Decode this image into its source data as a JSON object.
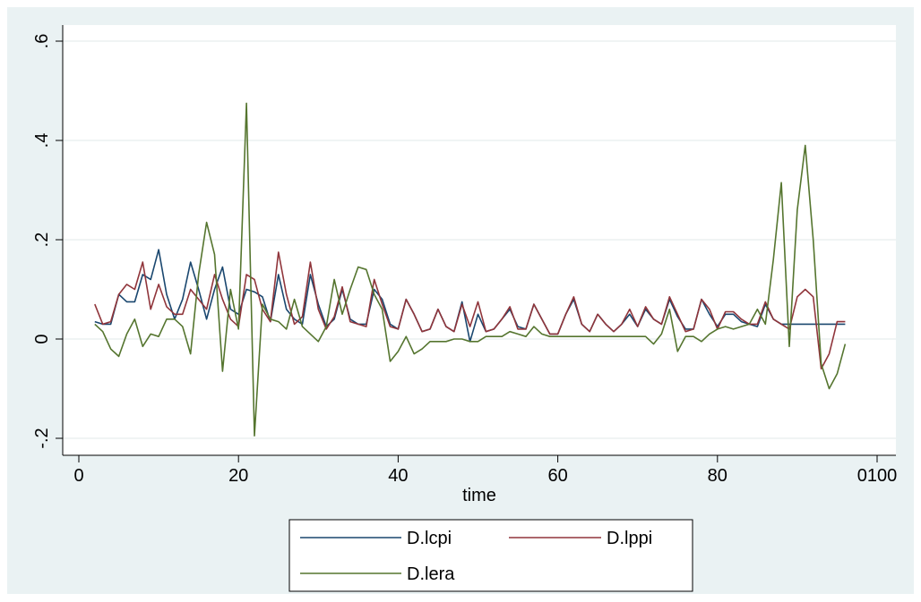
{
  "chart_data": {
    "type": "line",
    "xlabel": "time",
    "ylabel": "",
    "xlim": [
      0,
      100
    ],
    "ylim": [
      -0.2,
      0.6
    ],
    "x_ticks": [
      0,
      20,
      40,
      60,
      80,
      100
    ],
    "x_tick_labels": [
      "0",
      "20",
      "40",
      "60",
      "80",
      "0100"
    ],
    "y_ticks": [
      -0.2,
      0,
      0.2,
      0.4,
      0.6
    ],
    "y_tick_labels": [
      "-.2",
      "0",
      ".2",
      ".4",
      ".6"
    ],
    "grid": true,
    "legend_position": "bottom",
    "series": [
      {
        "name": "D.lcpi",
        "color": "#1a476f",
        "points": [
          [
            2,
            0.035
          ],
          [
            3,
            0.03
          ],
          [
            4,
            0.03
          ],
          [
            5,
            0.09
          ],
          [
            6,
            0.075
          ],
          [
            7,
            0.075
          ],
          [
            8,
            0.13
          ],
          [
            9,
            0.12
          ],
          [
            10,
            0.18
          ],
          [
            11,
            0.09
          ],
          [
            12,
            0.04
          ],
          [
            13,
            0.08
          ],
          [
            14,
            0.155
          ],
          [
            15,
            0.1
          ],
          [
            16,
            0.04
          ],
          [
            17,
            0.1
          ],
          [
            18,
            0.145
          ],
          [
            19,
            0.06
          ],
          [
            20,
            0.05
          ],
          [
            21,
            0.1
          ],
          [
            22,
            0.095
          ],
          [
            23,
            0.085
          ],
          [
            24,
            0.035
          ],
          [
            25,
            0.13
          ],
          [
            26,
            0.06
          ],
          [
            27,
            0.04
          ],
          [
            28,
            0.03
          ],
          [
            29,
            0.13
          ],
          [
            30,
            0.07
          ],
          [
            31,
            0.025
          ],
          [
            32,
            0.04
          ],
          [
            33,
            0.1
          ],
          [
            34,
            0.04
          ],
          [
            35,
            0.03
          ],
          [
            36,
            0.03
          ],
          [
            37,
            0.1
          ],
          [
            38,
            0.08
          ],
          [
            39,
            0.03
          ],
          [
            40,
            0.02
          ],
          [
            41,
            0.08
          ],
          [
            42,
            0.05
          ],
          [
            43,
            0.015
          ],
          [
            44,
            0.02
          ],
          [
            45,
            0.06
          ],
          [
            46,
            0.025
          ],
          [
            47,
            0.015
          ],
          [
            48,
            0.075
          ],
          [
            49,
            -0.005
          ],
          [
            50,
            0.05
          ],
          [
            51,
            0.015
          ],
          [
            52,
            0.02
          ],
          [
            53,
            0.04
          ],
          [
            54,
            0.06
          ],
          [
            55,
            0.025
          ],
          [
            56,
            0.02
          ],
          [
            57,
            0.07
          ],
          [
            58,
            0.04
          ],
          [
            59,
            0.01
          ],
          [
            60,
            0.01
          ],
          [
            61,
            0.05
          ],
          [
            62,
            0.08
          ],
          [
            63,
            0.03
          ],
          [
            64,
            0.015
          ],
          [
            65,
            0.05
          ],
          [
            66,
            0.03
          ],
          [
            67,
            0.015
          ],
          [
            68,
            0.03
          ],
          [
            69,
            0.05
          ],
          [
            70,
            0.025
          ],
          [
            71,
            0.06
          ],
          [
            72,
            0.04
          ],
          [
            73,
            0.03
          ],
          [
            74,
            0.08
          ],
          [
            75,
            0.045
          ],
          [
            76,
            0.02
          ],
          [
            77,
            0.02
          ],
          [
            78,
            0.08
          ],
          [
            79,
            0.05
          ],
          [
            80,
            0.025
          ],
          [
            81,
            0.05
          ],
          [
            82,
            0.05
          ],
          [
            83,
            0.035
          ],
          [
            84,
            0.03
          ],
          [
            85,
            0.025
          ],
          [
            86,
            0.07
          ],
          [
            87,
            0.04
          ],
          [
            88,
            0.03
          ],
          [
            89,
            0.03
          ],
          [
            90,
            0.03
          ],
          [
            91,
            0.03
          ],
          [
            92,
            0.03
          ],
          [
            93,
            0.03
          ],
          [
            94,
            0.03
          ],
          [
            95,
            0.03
          ],
          [
            96,
            0.03
          ]
        ]
      },
      {
        "name": "D.lppi",
        "color": "#90353b",
        "points": [
          [
            2,
            0.07
          ],
          [
            3,
            0.03
          ],
          [
            4,
            0.035
          ],
          [
            5,
            0.09
          ],
          [
            6,
            0.11
          ],
          [
            7,
            0.1
          ],
          [
            8,
            0.155
          ],
          [
            9,
            0.06
          ],
          [
            10,
            0.11
          ],
          [
            11,
            0.065
          ],
          [
            12,
            0.05
          ],
          [
            13,
            0.05
          ],
          [
            14,
            0.1
          ],
          [
            15,
            0.08
          ],
          [
            16,
            0.06
          ],
          [
            17,
            0.13
          ],
          [
            18,
            0.08
          ],
          [
            19,
            0.04
          ],
          [
            20,
            0.025
          ],
          [
            21,
            0.13
          ],
          [
            22,
            0.12
          ],
          [
            23,
            0.06
          ],
          [
            24,
            0.035
          ],
          [
            25,
            0.175
          ],
          [
            26,
            0.09
          ],
          [
            27,
            0.03
          ],
          [
            28,
            0.045
          ],
          [
            29,
            0.155
          ],
          [
            30,
            0.06
          ],
          [
            31,
            0.02
          ],
          [
            32,
            0.045
          ],
          [
            33,
            0.105
          ],
          [
            34,
            0.035
          ],
          [
            35,
            0.03
          ],
          [
            36,
            0.025
          ],
          [
            37,
            0.12
          ],
          [
            38,
            0.07
          ],
          [
            39,
            0.025
          ],
          [
            40,
            0.02
          ],
          [
            41,
            0.08
          ],
          [
            42,
            0.05
          ],
          [
            43,
            0.015
          ],
          [
            44,
            0.02
          ],
          [
            45,
            0.06
          ],
          [
            46,
            0.025
          ],
          [
            47,
            0.015
          ],
          [
            48,
            0.07
          ],
          [
            49,
            0.025
          ],
          [
            50,
            0.075
          ],
          [
            51,
            0.015
          ],
          [
            52,
            0.02
          ],
          [
            53,
            0.04
          ],
          [
            54,
            0.065
          ],
          [
            55,
            0.02
          ],
          [
            56,
            0.02
          ],
          [
            57,
            0.07
          ],
          [
            58,
            0.04
          ],
          [
            59,
            0.01
          ],
          [
            60,
            0.01
          ],
          [
            61,
            0.05
          ],
          [
            62,
            0.085
          ],
          [
            63,
            0.03
          ],
          [
            64,
            0.015
          ],
          [
            65,
            0.05
          ],
          [
            66,
            0.03
          ],
          [
            67,
            0.015
          ],
          [
            68,
            0.03
          ],
          [
            69,
            0.06
          ],
          [
            70,
            0.025
          ],
          [
            71,
            0.065
          ],
          [
            72,
            0.04
          ],
          [
            73,
            0.03
          ],
          [
            74,
            0.085
          ],
          [
            75,
            0.05
          ],
          [
            76,
            0.015
          ],
          [
            77,
            0.02
          ],
          [
            78,
            0.08
          ],
          [
            79,
            0.06
          ],
          [
            80,
            0.02
          ],
          [
            81,
            0.055
          ],
          [
            82,
            0.055
          ],
          [
            83,
            0.04
          ],
          [
            84,
            0.03
          ],
          [
            85,
            0.03
          ],
          [
            86,
            0.075
          ],
          [
            87,
            0.04
          ],
          [
            88,
            0.03
          ],
          [
            89,
            0.02
          ],
          [
            90,
            0.085
          ],
          [
            91,
            0.1
          ],
          [
            92,
            0.085
          ],
          [
            93,
            -0.06
          ],
          [
            94,
            -0.03
          ],
          [
            95,
            0.035
          ],
          [
            96,
            0.035
          ]
        ]
      },
      {
        "name": "D.lera",
        "color": "#55752f",
        "points": [
          [
            2,
            0.03
          ],
          [
            3,
            0.015
          ],
          [
            4,
            -0.02
          ],
          [
            5,
            -0.035
          ],
          [
            6,
            0.01
          ],
          [
            7,
            0.04
          ],
          [
            8,
            -0.015
          ],
          [
            9,
            0.01
          ],
          [
            10,
            0.005
          ],
          [
            11,
            0.04
          ],
          [
            12,
            0.04
          ],
          [
            13,
            0.025
          ],
          [
            14,
            -0.03
          ],
          [
            15,
            0.13
          ],
          [
            16,
            0.235
          ],
          [
            17,
            0.17
          ],
          [
            18,
            -0.065
          ],
          [
            19,
            0.1
          ],
          [
            20,
            0.02
          ],
          [
            21,
            0.475
          ],
          [
            22,
            -0.195
          ],
          [
            23,
            0.07
          ],
          [
            24,
            0.04
          ],
          [
            25,
            0.035
          ],
          [
            26,
            0.02
          ],
          [
            27,
            0.08
          ],
          [
            28,
            0.025
          ],
          [
            29,
            0.01
          ],
          [
            30,
            -0.005
          ],
          [
            31,
            0.025
          ],
          [
            32,
            0.12
          ],
          [
            33,
            0.05
          ],
          [
            34,
            0.1
          ],
          [
            35,
            0.145
          ],
          [
            36,
            0.14
          ],
          [
            37,
            0.09
          ],
          [
            38,
            0.06
          ],
          [
            39,
            -0.045
          ],
          [
            40,
            -0.025
          ],
          [
            41,
            0.005
          ],
          [
            42,
            -0.03
          ],
          [
            43,
            -0.02
          ],
          [
            44,
            -0.005
          ],
          [
            45,
            -0.005
          ],
          [
            46,
            -0.005
          ],
          [
            47,
            0.0
          ],
          [
            48,
            0.0
          ],
          [
            49,
            -0.005
          ],
          [
            50,
            -0.005
          ],
          [
            51,
            0.005
          ],
          [
            52,
            0.005
          ],
          [
            53,
            0.005
          ],
          [
            54,
            0.015
          ],
          [
            55,
            0.01
          ],
          [
            56,
            0.005
          ],
          [
            57,
            0.025
          ],
          [
            58,
            0.01
          ],
          [
            59,
            0.005
          ],
          [
            60,
            0.005
          ],
          [
            61,
            0.005
          ],
          [
            62,
            0.005
          ],
          [
            63,
            0.005
          ],
          [
            64,
            0.005
          ],
          [
            65,
            0.005
          ],
          [
            66,
            0.005
          ],
          [
            67,
            0.005
          ],
          [
            68,
            0.005
          ],
          [
            69,
            0.005
          ],
          [
            70,
            0.005
          ],
          [
            71,
            0.005
          ],
          [
            72,
            -0.01
          ],
          [
            73,
            0.01
          ],
          [
            74,
            0.06
          ],
          [
            75,
            -0.025
          ],
          [
            76,
            0.005
          ],
          [
            77,
            0.005
          ],
          [
            78,
            -0.005
          ],
          [
            79,
            0.01
          ],
          [
            80,
            0.02
          ],
          [
            81,
            0.025
          ],
          [
            82,
            0.02
          ],
          [
            83,
            0.025
          ],
          [
            84,
            0.03
          ],
          [
            85,
            0.06
          ],
          [
            86,
            0.03
          ],
          [
            87,
            0.16
          ],
          [
            88,
            0.315
          ],
          [
            89,
            -0.015
          ],
          [
            90,
            0.26
          ],
          [
            91,
            0.39
          ],
          [
            92,
            0.2
          ],
          [
            93,
            -0.05
          ],
          [
            94,
            -0.1
          ],
          [
            95,
            -0.07
          ],
          [
            96,
            -0.01
          ]
        ]
      }
    ]
  }
}
